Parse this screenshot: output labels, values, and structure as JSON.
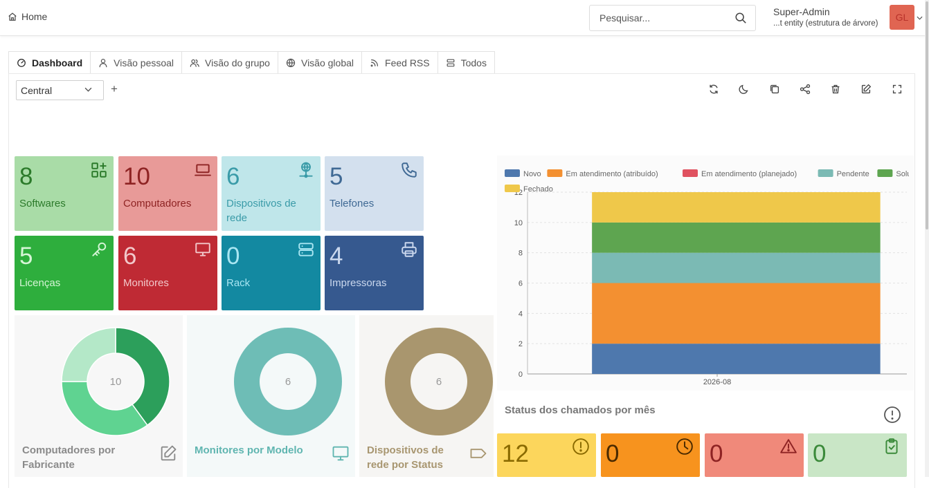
{
  "header": {
    "home_label": "Home",
    "search_placeholder": "Pesquisar...",
    "user_name": "Super-Admin",
    "user_entity": "...t entity (estrutura de árvore)",
    "avatar_initials": "GL"
  },
  "tabs": [
    {
      "label": "Dashboard",
      "icon": "dashboard-icon",
      "active": true
    },
    {
      "label": "Visão pessoal",
      "icon": "user-icon"
    },
    {
      "label": "Visão do grupo",
      "icon": "users-icon"
    },
    {
      "label": "Visão global",
      "icon": "globe-icon"
    },
    {
      "label": "Feed RSS",
      "icon": "rss-icon"
    },
    {
      "label": "Todos",
      "icon": "list-icon"
    }
  ],
  "dashboard_selector": {
    "value": "Central",
    "add_label": "+"
  },
  "cards": [
    {
      "value": "8",
      "label": "Softwares",
      "icon": "apps-icon",
      "bg": "#a9dca7",
      "fg": "#2b7a2a"
    },
    {
      "value": "10",
      "label": "Computadores",
      "icon": "laptop-icon",
      "bg": "#e89a98",
      "fg": "#8e2323"
    },
    {
      "value": "6",
      "label": "Dispositivos de rede",
      "icon": "network-icon",
      "bg": "#bfe6ea",
      "fg": "#3a9ba8"
    },
    {
      "value": "5",
      "label": "Telefones",
      "icon": "phone-icon",
      "bg": "#d3e0ee",
      "fg": "#3f6994"
    },
    {
      "value": "5",
      "label": "Licenças",
      "icon": "key-icon",
      "bg": "#2eae3d",
      "fg": "#d6f5d6"
    },
    {
      "value": "6",
      "label": "Monitores",
      "icon": "monitor-icon",
      "bg": "#bf2a34",
      "fg": "#f2c8ca"
    },
    {
      "value": "0",
      "label": "Rack",
      "icon": "server-icon",
      "bg": "#1389a1",
      "fg": "#a9e6f2"
    },
    {
      "value": "4",
      "label": "Impressoras",
      "icon": "printer-icon",
      "bg": "#36598f",
      "fg": "#cbd8ee"
    }
  ],
  "donuts": [
    {
      "total": "10",
      "title": "Computadores por Fabricante",
      "icon": "edit-icon",
      "bg": "#f7f7f7",
      "title_color": "#8a8a8a",
      "slices": [
        {
          "value": 4,
          "color": "#2c9f5b"
        },
        {
          "value": 3.5,
          "color": "#5fd391"
        },
        {
          "value": 2.5,
          "color": "#b4e8c8"
        }
      ]
    },
    {
      "total": "6",
      "title": "Monitores por Modelo",
      "icon": "monitor-icon",
      "bg": "#f4f9f9",
      "title_color": "#5fb5b0",
      "slices": [
        {
          "value": 6,
          "color": "#6ebdb6"
        }
      ]
    },
    {
      "total": "6",
      "title": "Dispositivos de rede por Status",
      "icon": "tag-icon",
      "bg": "#f6f5f3",
      "title_color": "#a89670",
      "slices": [
        {
          "value": 6,
          "color": "#a9966e"
        }
      ]
    }
  ],
  "chart_data": {
    "type": "bar",
    "stacked": true,
    "categories": [
      "2026-08"
    ],
    "series": [
      {
        "name": "Novo",
        "values": [
          2
        ],
        "color": "#4e78ad"
      },
      {
        "name": "Em atendimento (atribuído)",
        "values": [
          4
        ],
        "color": "#f39031"
      },
      {
        "name": "Em atendimento (planejado)",
        "values": [
          0
        ],
        "color": "#e05260"
      },
      {
        "name": "Pendente",
        "values": [
          2
        ],
        "color": "#7bbab4"
      },
      {
        "name": "Solucionado",
        "values": [
          2
        ],
        "color": "#5ea550"
      },
      {
        "name": "Fechado",
        "values": [
          2
        ],
        "color": "#efc84a"
      }
    ],
    "ylim": [
      0,
      12
    ],
    "yticks": [
      0,
      2,
      4,
      6,
      8,
      10,
      12
    ],
    "title": "Status dos chamados por mês",
    "legend_position": "top"
  },
  "stats": [
    {
      "value": "12",
      "icon": "alert-circle-icon",
      "bg": "#fcd65c",
      "fg": "#8a6a00"
    },
    {
      "value": "0",
      "icon": "clock-icon",
      "bg": "#f7931e",
      "fg": "#4a2a00"
    },
    {
      "value": "0",
      "icon": "warning-icon",
      "bg": "#f0897a",
      "fg": "#8e2323"
    },
    {
      "value": "0",
      "icon": "clipboard-check-icon",
      "bg": "#c9e6c6",
      "fg": "#3b8a3a"
    }
  ]
}
